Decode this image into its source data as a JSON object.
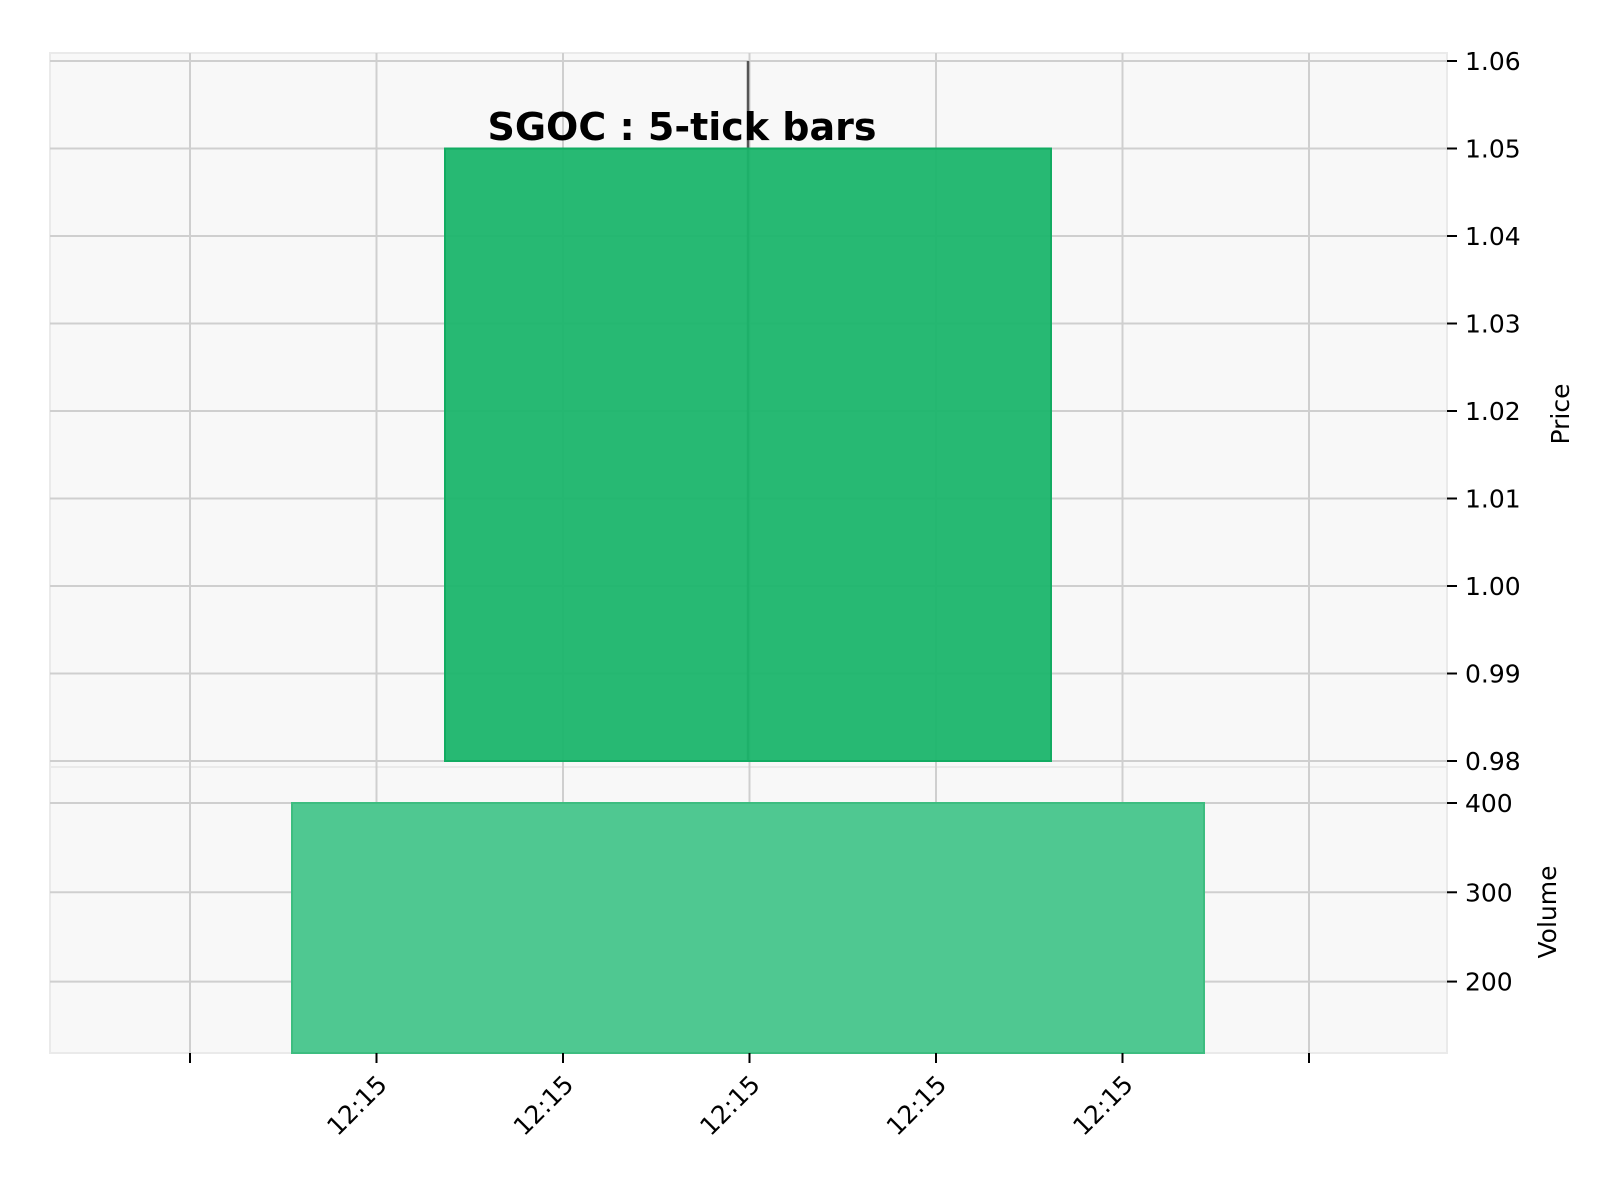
{
  "chart_data": {
    "type": "candlestick",
    "title": "SGOC : 5-tick bars",
    "x_tick_labels": [
      "",
      "12:15",
      "12:15",
      "12:15",
      "12:15",
      "12:15",
      ""
    ],
    "price_panel": {
      "ylabel": "Price",
      "ylim": [
        0.98,
        1.06
      ],
      "yticks": [
        "0.98",
        "0.99",
        "1.00",
        "1.01",
        "1.02",
        "1.03",
        "1.04",
        "1.05",
        "1.06"
      ],
      "candles": [
        {
          "open": 0.98,
          "high": 1.06,
          "low": 0.98,
          "close": 1.05
        }
      ]
    },
    "volume_panel": {
      "ylabel": "Volume",
      "ylim": [
        120,
        410
      ],
      "yticks": [
        "200",
        "300",
        "400"
      ],
      "bars": [
        {
          "value": 400
        }
      ]
    },
    "colors": {
      "up_candle": "#1bb56c",
      "volume_bar": "#4fc891",
      "wick": "#555555",
      "panel_bg": "#f8f8f8",
      "grid": "#cfcfcf"
    },
    "grid": true,
    "yaxis_side": "right"
  }
}
